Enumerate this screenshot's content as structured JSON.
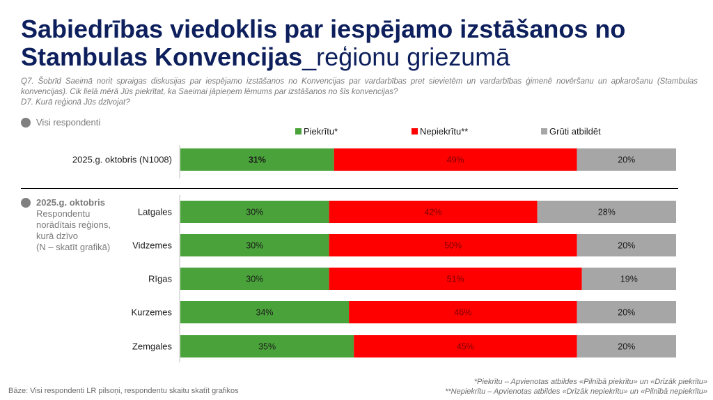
{
  "title": {
    "bold": "Sabiedrības viedoklis par iespējamo izstāšanos no Stambulas Konvencijas",
    "light": "_reģionu griezumā"
  },
  "question": {
    "q7": "Q7. Šobrīd Saeimā norit spraigas diskusijas par iespējamo izstāšanos no Konvencijas par vardarbības pret sievietēm un vardarbības ģimenē novēršanu un apkarošanu (Stambulas konvencijas). Cik lielā mērā Jūs piekrītat, ka Saeimai jāpieņem lēmums par izstāšanos no šīs konvencijas?",
    "d7": "D7. Kurā reģionā Jūs dzīvojat?"
  },
  "all_respondents_label": "Visi respondenti",
  "regions_note": {
    "period": "2025.g. oktobris",
    "lines": [
      "Respondentu",
      "norādītais reģions,",
      "kurā dzīvo",
      "(N – skatīt grafikā)"
    ]
  },
  "colors": {
    "agree": "#4aa33a",
    "disagree": "#ff0000",
    "hard": "#a6a6a6",
    "title": "#0d1f5c"
  },
  "chart_data": {
    "type": "bar",
    "orientation": "horizontal",
    "stacked": true,
    "percent": true,
    "legend": [
      {
        "name": "Piekrītu*",
        "color": "#4aa33a"
      },
      {
        "name": "Nepiekrītu**",
        "color": "#ff0000"
      },
      {
        "name": "Grūti atbildēt",
        "color": "#a6a6a6"
      }
    ],
    "legend_position": "top",
    "total": {
      "category": "2025.g. oktobris (N1008)",
      "values": [
        31,
        49,
        20
      ],
      "labels": [
        "31%",
        "49%",
        "20%"
      ]
    },
    "categories": [
      "Latgales",
      "Vidzemes",
      "Rīgas",
      "Kurzemes",
      "Zemgales"
    ],
    "series": [
      {
        "name": "Piekrītu*",
        "values": [
          30,
          30,
          30,
          34,
          35
        ],
        "labels": [
          "30%",
          "30%",
          "30%",
          "34%",
          "35%"
        ]
      },
      {
        "name": "Nepiekrītu**",
        "values": [
          42,
          50,
          51,
          46,
          45
        ],
        "labels": [
          "42%",
          "50%",
          "51%",
          "46%",
          "45%"
        ]
      },
      {
        "name": "Grūti atbildēt",
        "values": [
          28,
          20,
          19,
          20,
          20
        ],
        "labels": [
          "28%",
          "20%",
          "19%",
          "20%",
          "20%"
        ]
      }
    ]
  },
  "footer": {
    "base": "Bāze: Visi respondenti LR pilsoņi, respondentu skaitu skatīt grafikos",
    "note1": "*Piekrītu – Apvienotas atbildes «Pilnībā piekrītu» un «Drīzāk piekrītu»",
    "note2": "**Nepiekrītu – Apvienotas atbildes «Drīzāk nepiekrītu» un «Pilnībā nepiekrītu»"
  }
}
